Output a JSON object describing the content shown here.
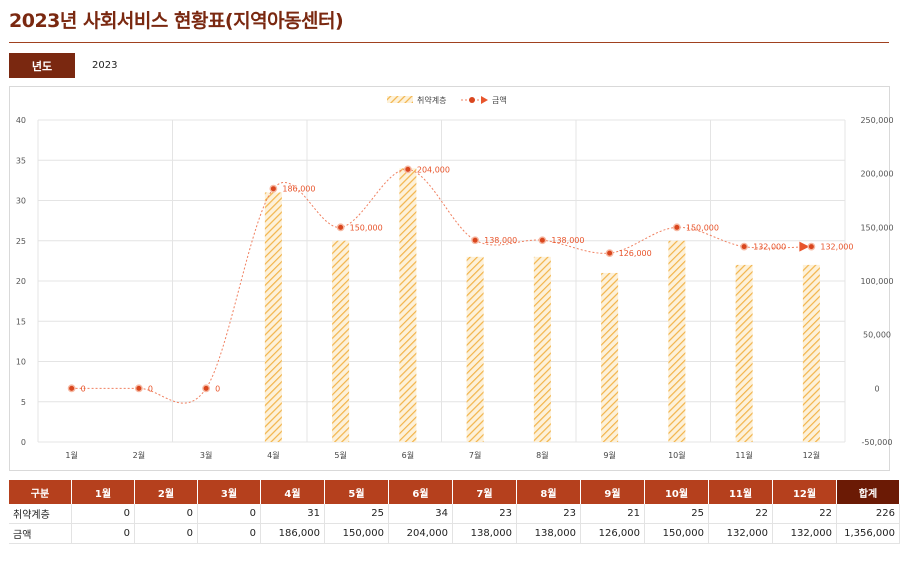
{
  "page": {
    "title": "2023년 사회서비스 현황표(지역아동센터)",
    "year_label": "년도",
    "year_value": "2023"
  },
  "colors": {
    "bar": "#f5c56b",
    "line": "#e8552c",
    "header": "#b5401d",
    "header_dark": "#6b1a05",
    "title": "#7a2810"
  },
  "chart_data": {
    "type": "bar+line",
    "categories": [
      "1월",
      "2월",
      "3월",
      "4월",
      "5월",
      "6월",
      "7월",
      "8월",
      "9월",
      "10월",
      "11월",
      "12월"
    ],
    "series": [
      {
        "name": "취약계층",
        "type": "bar",
        "axis": "left",
        "values": [
          0,
          0,
          0,
          31,
          25,
          34,
          23,
          23,
          21,
          25,
          22,
          22
        ]
      },
      {
        "name": "금액",
        "type": "line",
        "axis": "right",
        "values": [
          0,
          0,
          0,
          186000,
          150000,
          204000,
          138000,
          138000,
          126000,
          150000,
          132000,
          132000
        ],
        "labels": [
          "0",
          "0",
          "0",
          "186,000",
          "150,000",
          "204,000",
          "138,000",
          "138,000",
          "126,000",
          "150,000",
          "132,000",
          "132,000"
        ]
      }
    ],
    "y_left": {
      "min": 0,
      "max": 40,
      "ticks": [
        "0",
        "5",
        "10",
        "15",
        "20",
        "25",
        "30",
        "35",
        "40"
      ]
    },
    "y_right": {
      "min": -50000,
      "max": 250000,
      "ticks": [
        "-50,000",
        "0",
        "50,000",
        "100,000",
        "150,000",
        "200,000",
        "250,000"
      ]
    },
    "legend_position": "top-center",
    "grid": true
  },
  "table": {
    "headers": [
      "구분",
      "1월",
      "2월",
      "3월",
      "4월",
      "5월",
      "6월",
      "7월",
      "8월",
      "9월",
      "10월",
      "11월",
      "12월",
      "합계"
    ],
    "rows": [
      {
        "label": "취약계층",
        "values": [
          "0",
          "0",
          "0",
          "31",
          "25",
          "34",
          "23",
          "23",
          "21",
          "25",
          "22",
          "22"
        ],
        "total": "226"
      },
      {
        "label": "금액",
        "values": [
          "0",
          "0",
          "0",
          "186,000",
          "150,000",
          "204,000",
          "138,000",
          "138,000",
          "126,000",
          "150,000",
          "132,000",
          "132,000"
        ],
        "total": "1,356,000"
      }
    ]
  }
}
